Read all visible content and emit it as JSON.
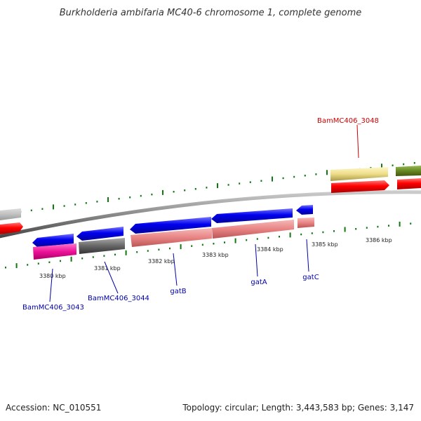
{
  "title": "Burkholderia ambifaria MC40-6 chromosome 1, complete genome",
  "ticks": [
    {
      "label": "3380 kbp"
    },
    {
      "label": "3381 kbp"
    },
    {
      "label": "3382 kbp"
    },
    {
      "label": "3383 kbp"
    },
    {
      "label": "3384 kbp"
    },
    {
      "label": "3385 kbp"
    },
    {
      "label": "3386 kbp"
    }
  ],
  "gene_labels": [
    {
      "name": "BamMC406_3048",
      "color": "#cc0000"
    },
    {
      "name": "BamMC406_3043",
      "color": "#0000aa"
    },
    {
      "name": "BamMC406_3044",
      "color": "#0000aa"
    },
    {
      "name": "gatB",
      "color": "#0000aa"
    },
    {
      "name": "gatA",
      "color": "#0000aa"
    },
    {
      "name": "gatC",
      "color": "#0000aa"
    }
  ],
  "colors": {
    "forward_feature": "#ff0000",
    "reverse_feature": "#0000ff",
    "rrna_like": "#ee8888",
    "magenta": "#ee1199",
    "grey": "#666666",
    "yellow": "#eedd88",
    "olive": "#668822",
    "tick_green": "#117711",
    "backbone": "#808080"
  },
  "footer": {
    "accession": "Accession: NC_010551",
    "summary": "Topology: circular; Length: 3,443,583 bp; Genes: 3,147"
  }
}
